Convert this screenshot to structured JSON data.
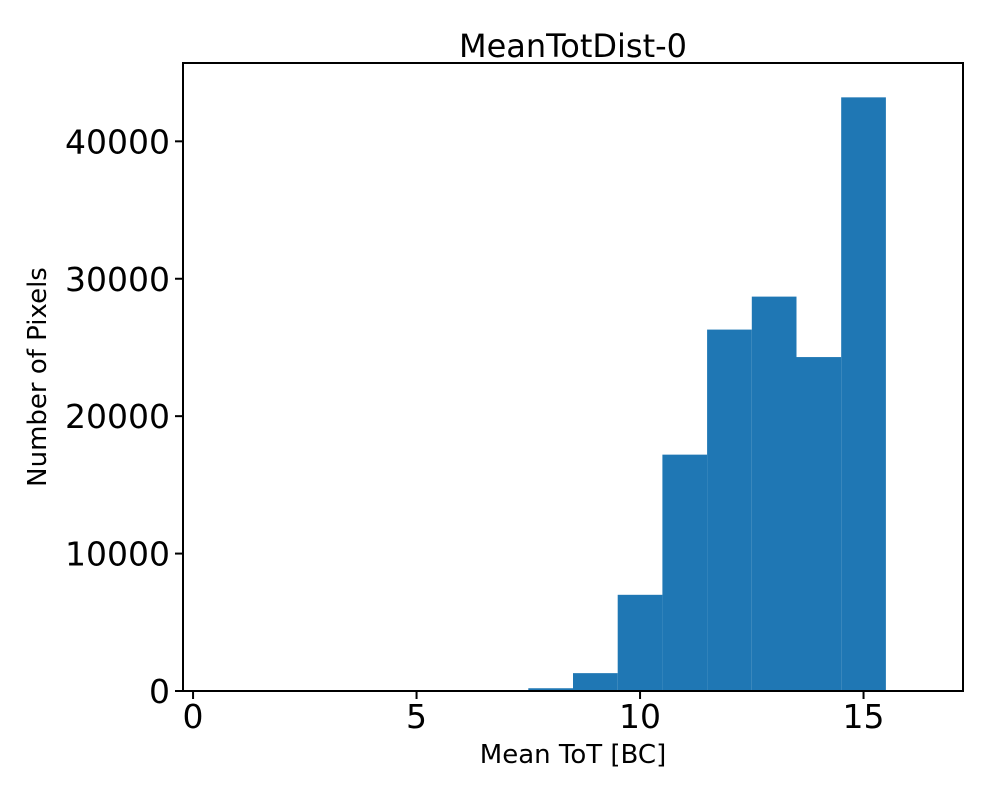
{
  "figure": {
    "window_background": "#ffffff"
  },
  "chart_data": {
    "type": "bar",
    "title": "MeanTotDist-0",
    "xlabel": "Mean ToT [BC]",
    "ylabel": "Number of Pixels",
    "bin_edges": [
      7.5,
      8.5,
      9.5,
      10.5,
      11.5,
      12.5,
      13.5,
      14.5,
      15.5
    ],
    "values": [
      200,
      1300,
      7000,
      17200,
      26300,
      28700,
      24300,
      43200
    ],
    "bin_centers": [
      8,
      9,
      10,
      11,
      12,
      13,
      14,
      15
    ],
    "xticks": [
      0,
      5,
      10,
      15
    ],
    "yticks": [
      0,
      10000,
      20000,
      30000,
      40000
    ],
    "xlim": [
      -0.225,
      17.225
    ],
    "ylim": [
      0,
      45700
    ],
    "bar_color": "#1f77b4",
    "axis_color": "#000000",
    "grid": false,
    "legend": null
  }
}
